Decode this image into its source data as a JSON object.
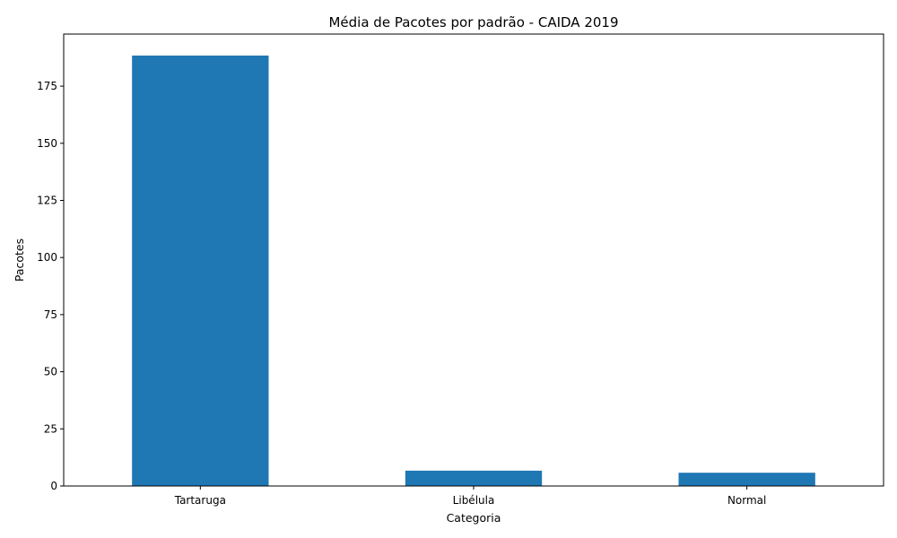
{
  "chart_data": {
    "type": "bar",
    "title": "Média de Pacotes por padrão - CAIDA 2019",
    "xlabel": "Categoria",
    "ylabel": "Pacotes",
    "categories": [
      "Tartaruga",
      "Libélula",
      "Normal"
    ],
    "values": [
      188.4,
      6.7,
      5.8
    ],
    "ylim": [
      0,
      197.8
    ],
    "yticks": [
      0,
      25,
      50,
      75,
      100,
      125,
      150,
      175
    ],
    "bar_color": "#1f77b4",
    "grid": false,
    "legend": "none"
  }
}
